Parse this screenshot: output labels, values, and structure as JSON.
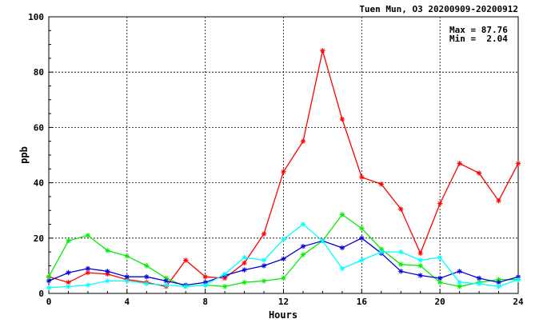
{
  "chart_data": {
    "type": "line",
    "title": "Tuen Mun, O3 20200909-20200912",
    "xlabel": "Hours",
    "ylabel": "ppb",
    "xlim": [
      0,
      24
    ],
    "ylim": [
      0,
      100
    ],
    "xticks": [
      0,
      4,
      8,
      12,
      16,
      20,
      24
    ],
    "yticks": [
      0,
      20,
      40,
      60,
      80,
      100
    ],
    "grid": true,
    "stats": {
      "max_label": "Max = 87.76",
      "min_label": "Min =  2.04"
    },
    "series": [
      {
        "color": "#ff0000",
        "points": [
          [
            0,
            6
          ],
          [
            1,
            4
          ],
          [
            2,
            7.5
          ],
          [
            3,
            7
          ],
          [
            4,
            5
          ],
          [
            5,
            4
          ],
          [
            6,
            2.5
          ],
          [
            7,
            12
          ],
          [
            8,
            6
          ],
          [
            9,
            5.5
          ],
          [
            10,
            11
          ],
          [
            11,
            21.5
          ],
          [
            12,
            44
          ],
          [
            13,
            55
          ],
          [
            14,
            87.76
          ],
          [
            15,
            63
          ],
          [
            16,
            42
          ],
          [
            17,
            39.5
          ],
          [
            18,
            30.5
          ],
          [
            19,
            14.5
          ],
          [
            20,
            32.5
          ],
          [
            21,
            47
          ],
          [
            22,
            43.5
          ],
          [
            23,
            33.5
          ],
          [
            24,
            47
          ]
        ]
      },
      {
        "color": "#00ee00",
        "points": [
          [
            0,
            6
          ],
          [
            1,
            19
          ],
          [
            2,
            21
          ],
          [
            3,
            15.5
          ],
          [
            4,
            13.5
          ],
          [
            5,
            10
          ],
          [
            6,
            5.5
          ],
          [
            7,
            2.5
          ],
          [
            8,
            3
          ],
          [
            9,
            2.5
          ],
          [
            10,
            4
          ],
          [
            11,
            4.5
          ],
          [
            12,
            5.5
          ],
          [
            13,
            14
          ],
          [
            14,
            19
          ],
          [
            15,
            28.5
          ],
          [
            16,
            23.5
          ],
          [
            17,
            16
          ],
          [
            18,
            10.5
          ],
          [
            19,
            10
          ],
          [
            20,
            4
          ],
          [
            21,
            2.5
          ],
          [
            22,
            4
          ],
          [
            23,
            5
          ],
          [
            24,
            5
          ]
        ]
      },
      {
        "color": "#0000dd",
        "points": [
          [
            0,
            4.5
          ],
          [
            1,
            7.5
          ],
          [
            2,
            9
          ],
          [
            3,
            8
          ],
          [
            4,
            6
          ],
          [
            5,
            6
          ],
          [
            6,
            4.5
          ],
          [
            7,
            3
          ],
          [
            8,
            4
          ],
          [
            9,
            6.5
          ],
          [
            10,
            8.5
          ],
          [
            11,
            10
          ],
          [
            12,
            12.5
          ],
          [
            13,
            17
          ],
          [
            14,
            19
          ],
          [
            15,
            16.5
          ],
          [
            16,
            20
          ],
          [
            17,
            14.5
          ],
          [
            18,
            8
          ],
          [
            19,
            6.5
          ],
          [
            20,
            5.5
          ],
          [
            21,
            8
          ],
          [
            22,
            5.5
          ],
          [
            23,
            4
          ],
          [
            24,
            6
          ]
        ]
      },
      {
        "color": "#00ffff",
        "points": [
          [
            0,
            2.04
          ],
          [
            1,
            2.5
          ],
          [
            2,
            3
          ],
          [
            3,
            4.5
          ],
          [
            4,
            4.5
          ],
          [
            5,
            3.5
          ],
          [
            6,
            3
          ],
          [
            7,
            2.5
          ],
          [
            8,
            3
          ],
          [
            9,
            7
          ],
          [
            10,
            13
          ],
          [
            11,
            12
          ],
          [
            12,
            19.5
          ],
          [
            13,
            25
          ],
          [
            14,
            19
          ],
          [
            15,
            9
          ],
          [
            16,
            12
          ],
          [
            17,
            15
          ],
          [
            18,
            15
          ],
          [
            19,
            12
          ],
          [
            20,
            13
          ],
          [
            21,
            4
          ],
          [
            22,
            3.5
          ],
          [
            23,
            2.5
          ],
          [
            24,
            5
          ]
        ]
      }
    ]
  }
}
